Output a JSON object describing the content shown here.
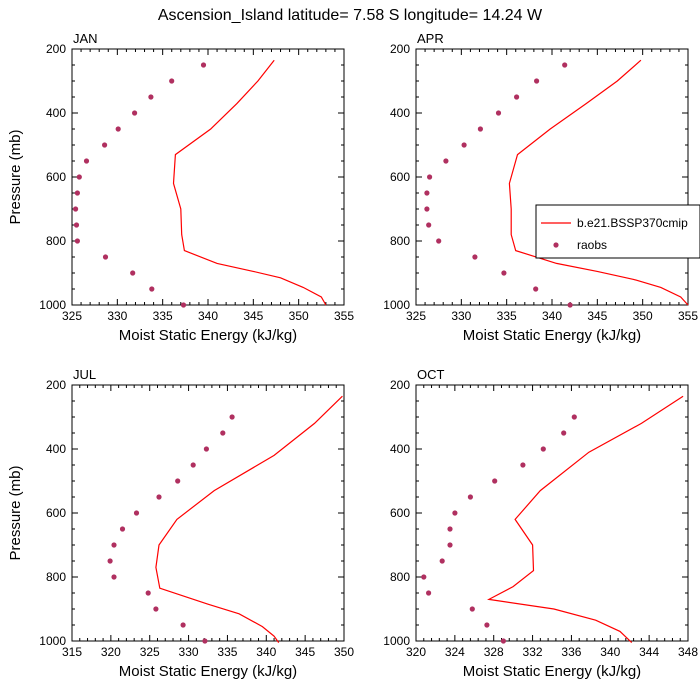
{
  "title": "Ascension_Island  latitude= 7.58 S longitude= 14.24 W",
  "colors": {
    "model": "#ff0000",
    "raobs": "#b03060",
    "frame": "#000000"
  },
  "legend": {
    "model_label": "b.e21.BSSP370cmip",
    "raobs_label": "raobs",
    "placement": "overlapping APR panel, right"
  },
  "chart_data": [
    {
      "type": "line",
      "panel": "JAN",
      "xlabel": "Moist Static Energy (kJ/kg)",
      "ylabel": "Pressure (mb)",
      "xlim": [
        325,
        355
      ],
      "ylim": [
        200,
        1000
      ],
      "y_reversed": true,
      "xticks": [
        325,
        330,
        335,
        340,
        345,
        350,
        355
      ],
      "yticks": [
        200,
        400,
        600,
        800,
        1000
      ],
      "series": [
        {
          "name": "b.e21.BSSP370cmip",
          "kind": "line",
          "points": [
            [
              347.3,
              235
            ],
            [
              345.5,
              300
            ],
            [
              343.2,
              370
            ],
            [
              340.3,
              450
            ],
            [
              336.4,
              530
            ],
            [
              336.2,
              620
            ],
            [
              337.0,
              700
            ],
            [
              337.1,
              780
            ],
            [
              337.4,
              830
            ],
            [
              341.0,
              870
            ],
            [
              345.0,
              895
            ],
            [
              348.0,
              915
            ],
            [
              350.5,
              945
            ],
            [
              352.5,
              975
            ],
            [
              353.0,
              1000
            ]
          ]
        },
        {
          "name": "raobs",
          "kind": "scatter",
          "points": [
            [
              339.5,
              250
            ],
            [
              336.0,
              300
            ],
            [
              333.7,
              350
            ],
            [
              331.9,
              400
            ],
            [
              330.1,
              450
            ],
            [
              328.6,
              500
            ],
            [
              326.6,
              550
            ],
            [
              325.8,
              600
            ],
            [
              325.6,
              650
            ],
            [
              325.4,
              700
            ],
            [
              325.5,
              750
            ],
            [
              325.6,
              800
            ],
            [
              328.7,
              850
            ],
            [
              331.7,
              900
            ],
            [
              333.8,
              950
            ],
            [
              337.3,
              1000
            ]
          ]
        }
      ]
    },
    {
      "type": "line",
      "panel": "APR",
      "xlabel": "Moist Static Energy (kJ/kg)",
      "ylabel": "",
      "xlim": [
        325,
        355
      ],
      "ylim": [
        200,
        1000
      ],
      "y_reversed": true,
      "xticks": [
        325,
        330,
        335,
        340,
        345,
        350,
        355
      ],
      "yticks": [
        200,
        400,
        600,
        800,
        1000
      ],
      "series": [
        {
          "name": "b.e21.BSSP370cmip",
          "kind": "line",
          "points": [
            [
              349.8,
              235
            ],
            [
              347.2,
              300
            ],
            [
              343.8,
              370
            ],
            [
              339.8,
              450
            ],
            [
              336.2,
              530
            ],
            [
              335.3,
              620
            ],
            [
              335.5,
              700
            ],
            [
              335.5,
              780
            ],
            [
              336.0,
              830
            ],
            [
              340.5,
              870
            ],
            [
              345.0,
              895
            ],
            [
              349.0,
              920
            ],
            [
              352.0,
              945
            ],
            [
              354.2,
              975
            ],
            [
              355.0,
              1000
            ]
          ]
        },
        {
          "name": "raobs",
          "kind": "scatter",
          "points": [
            [
              341.4,
              250
            ],
            [
              338.3,
              300
            ],
            [
              336.1,
              350
            ],
            [
              334.1,
              400
            ],
            [
              332.1,
              450
            ],
            [
              330.3,
              500
            ],
            [
              328.3,
              550
            ],
            [
              326.5,
              600
            ],
            [
              326.2,
              650
            ],
            [
              326.2,
              700
            ],
            [
              326.4,
              750
            ],
            [
              327.5,
              800
            ],
            [
              331.5,
              850
            ],
            [
              334.7,
              900
            ],
            [
              338.2,
              950
            ],
            [
              342.0,
              1000
            ]
          ]
        }
      ]
    },
    {
      "type": "line",
      "panel": "JUL",
      "xlabel": "Moist Static Energy (kJ/kg)",
      "ylabel": "Pressure (mb)",
      "xlim": [
        315,
        350
      ],
      "ylim": [
        200,
        1000
      ],
      "y_reversed": true,
      "xticks": [
        315,
        320,
        325,
        330,
        335,
        340,
        345,
        350
      ],
      "yticks": [
        200,
        400,
        600,
        800,
        1000
      ],
      "series": [
        {
          "name": "b.e21.BSSP370cmip",
          "kind": "line",
          "points": [
            [
              349.8,
              235
            ],
            [
              346.2,
              320
            ],
            [
              341.0,
              420
            ],
            [
              333.3,
              530
            ],
            [
              328.5,
              620
            ],
            [
              326.2,
              700
            ],
            [
              325.8,
              770
            ],
            [
              326.3,
              835
            ],
            [
              332.5,
              885
            ],
            [
              336.5,
              915
            ],
            [
              339.5,
              955
            ],
            [
              341.0,
              985
            ],
            [
              341.6,
              1005
            ]
          ]
        },
        {
          "name": "raobs",
          "kind": "scatter",
          "points": [
            [
              335.6,
              300
            ],
            [
              334.4,
              350
            ],
            [
              332.3,
              400
            ],
            [
              330.6,
              450
            ],
            [
              328.6,
              500
            ],
            [
              326.2,
              550
            ],
            [
              323.3,
              600
            ],
            [
              321.5,
              650
            ],
            [
              320.4,
              700
            ],
            [
              319.9,
              750
            ],
            [
              320.4,
              800
            ],
            [
              324.8,
              850
            ],
            [
              325.8,
              900
            ],
            [
              329.3,
              950
            ],
            [
              332.1,
              1000
            ]
          ]
        }
      ]
    },
    {
      "type": "line",
      "panel": "OCT",
      "xlabel": "Moist Static Energy (kJ/kg)",
      "ylabel": "",
      "xlim": [
        320,
        348
      ],
      "ylim": [
        200,
        1000
      ],
      "y_reversed": true,
      "xticks": [
        320,
        324,
        328,
        332,
        336,
        340,
        344,
        348
      ],
      "yticks": [
        200,
        400,
        600,
        800,
        1000
      ],
      "series": [
        {
          "name": "b.e21.BSSP370cmip",
          "kind": "line",
          "points": [
            [
              347.5,
              235
            ],
            [
              343.2,
              320
            ],
            [
              337.8,
              410
            ],
            [
              332.8,
              530
            ],
            [
              330.2,
              620
            ],
            [
              332.0,
              700
            ],
            [
              332.1,
              780
            ],
            [
              330.0,
              830
            ],
            [
              327.5,
              870
            ],
            [
              334.2,
              900
            ],
            [
              338.5,
              935
            ],
            [
              341.0,
              970
            ],
            [
              342.2,
              1005
            ]
          ]
        },
        {
          "name": "raobs",
          "kind": "scatter",
          "points": [
            [
              336.3,
              300
            ],
            [
              335.2,
              350
            ],
            [
              333.1,
              400
            ],
            [
              331.0,
              450
            ],
            [
              328.1,
              500
            ],
            [
              325.6,
              550
            ],
            [
              324.0,
              600
            ],
            [
              323.5,
              650
            ],
            [
              323.5,
              700
            ],
            [
              322.7,
              750
            ],
            [
              320.8,
              800
            ],
            [
              321.3,
              850
            ],
            [
              325.8,
              900
            ],
            [
              327.3,
              950
            ],
            [
              329.0,
              1000
            ]
          ]
        }
      ]
    }
  ]
}
